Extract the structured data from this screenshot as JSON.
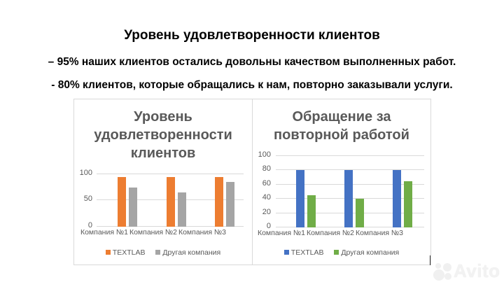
{
  "header": {
    "title": "Уровень удовлетворенности клиентов",
    "line1": "– 95% наших клиентов остались довольны качеством выполненных работ.",
    "line2": "- 80% клиентов, которые обращались к нам, повторно заказывали услуги."
  },
  "colors": {
    "orange": "#ED7D31",
    "gray": "#A5A5A5",
    "blue": "#4472C4",
    "green": "#70AD47",
    "chart_text": "#595959",
    "grid": "#D9D9D9"
  },
  "watermark": "Avito",
  "chart_data": [
    {
      "type": "bar",
      "title": "Уровень удовлетворенности клиентов",
      "title_lines": [
        "Уровень",
        "удовлетворенности",
        "клиентов"
      ],
      "categories": [
        "Компания №1",
        "Компания №2",
        "Компания №3"
      ],
      "series": [
        {
          "name": "TEXTLAB",
          "color": "#ED7D31",
          "values": [
            95,
            95,
            95
          ]
        },
        {
          "name": "Другая компания",
          "color": "#A5A5A5",
          "values": [
            75,
            65,
            85
          ]
        }
      ],
      "yticks": [
        "100",
        "50",
        "0"
      ],
      "ylim": [
        0,
        100
      ],
      "xlabel": "",
      "ylabel": "",
      "grid": true,
      "legend_position": "bottom"
    },
    {
      "type": "bar",
      "title": "Обращение за повторной работой",
      "title_lines": [
        "Обращение за",
        "повторной работой"
      ],
      "categories": [
        "Компания №1",
        "Компания №2",
        "Компания №3"
      ],
      "series": [
        {
          "name": "TEXTLAB",
          "color": "#4472C4",
          "values": [
            80,
            80,
            80
          ]
        },
        {
          "name": "Другая компания",
          "color": "#70AD47",
          "values": [
            45,
            40,
            65
          ]
        }
      ],
      "yticks": [
        "100",
        "80",
        "60",
        "40",
        "20",
        "0"
      ],
      "ylim": [
        0,
        100
      ],
      "xlabel": "",
      "ylabel": "",
      "grid": true,
      "legend_position": "bottom"
    }
  ]
}
